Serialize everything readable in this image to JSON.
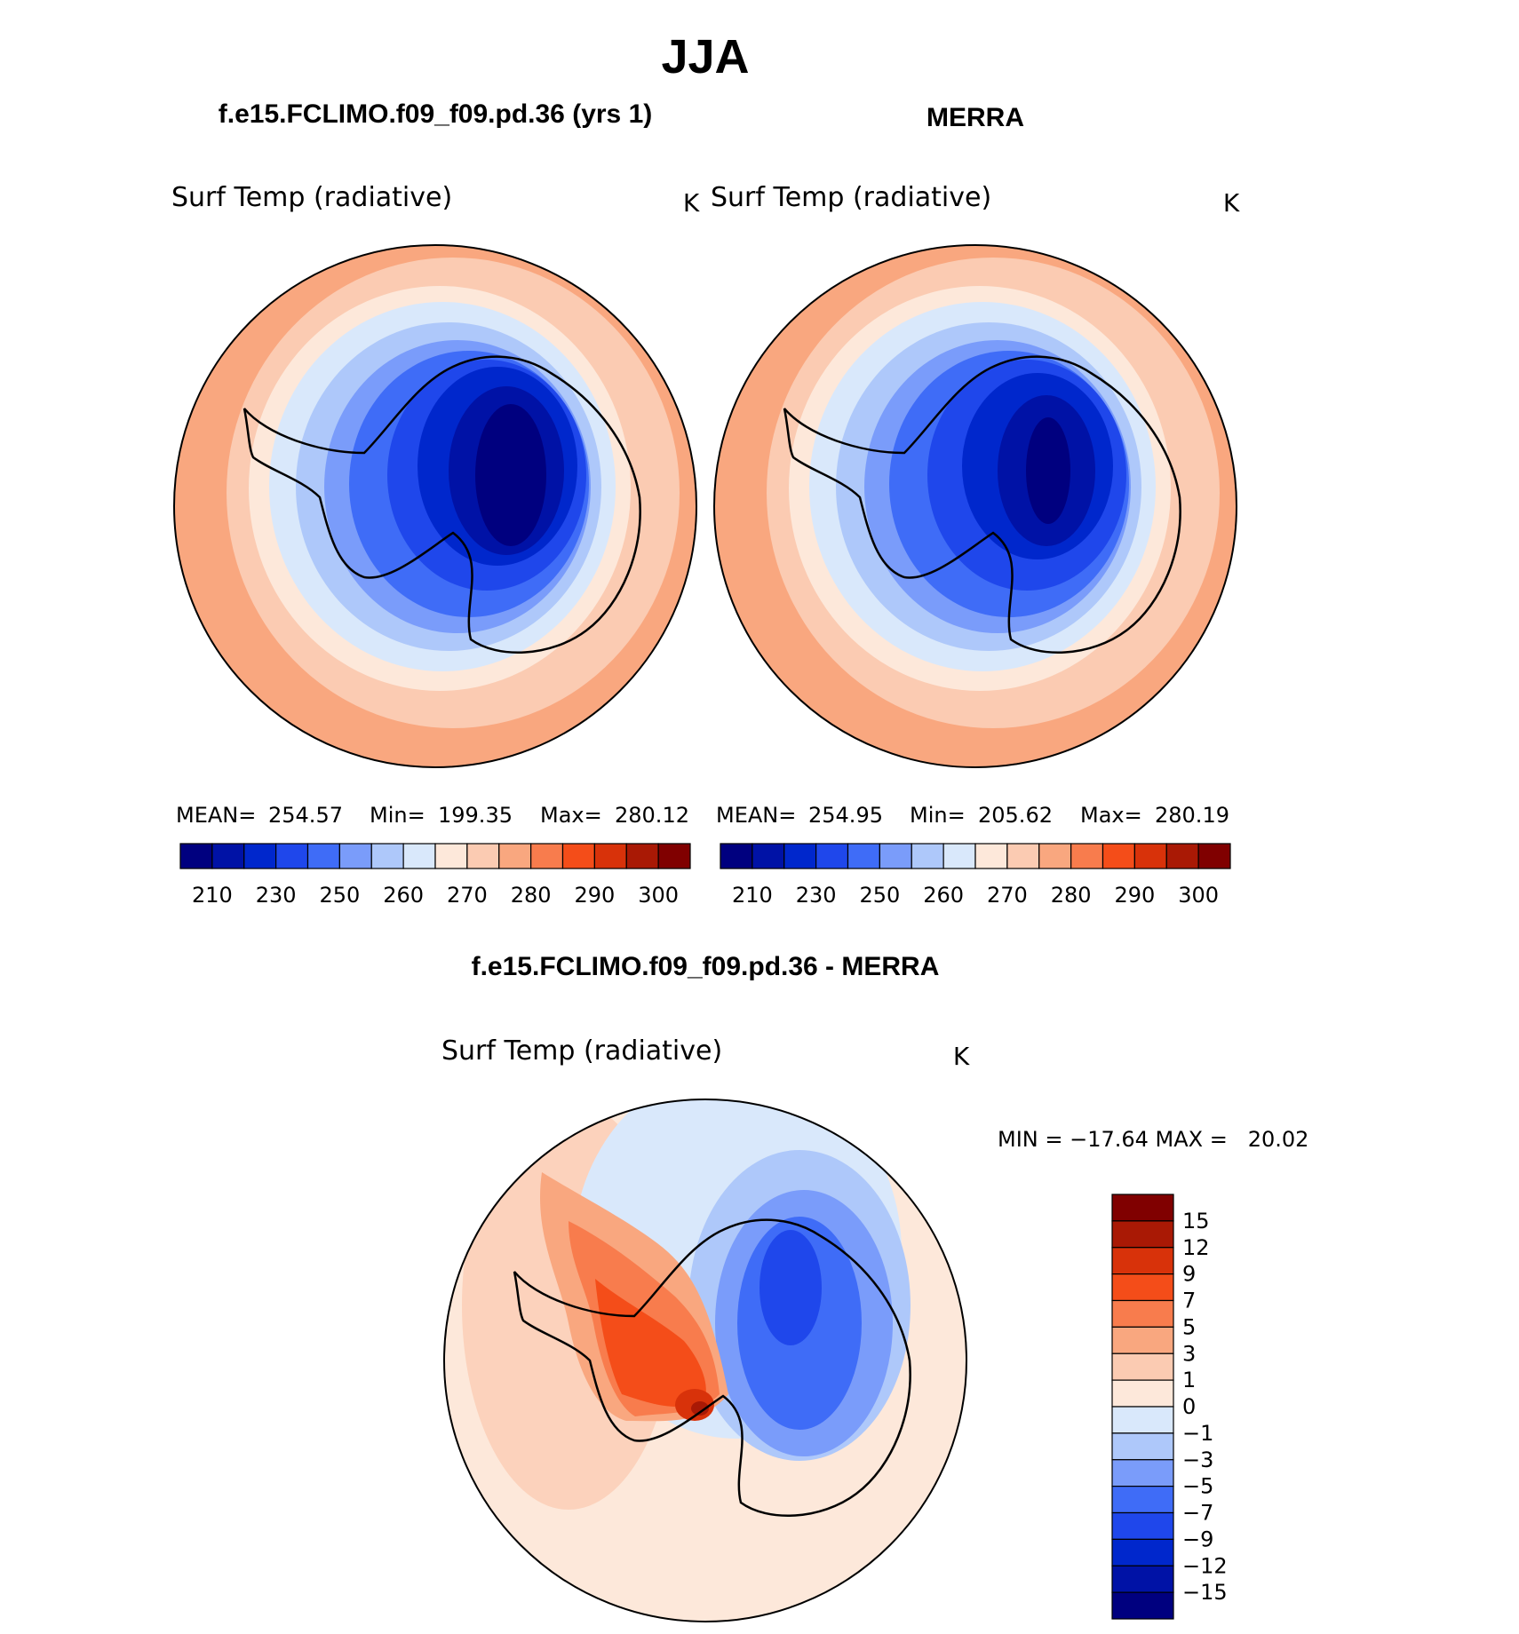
{
  "figure": {
    "title": "JJA",
    "colors": {
      "seq": [
        "#00007f",
        "#0012a6",
        "#0027cc",
        "#1f47eb",
        "#3f6cf7",
        "#7a9cfa",
        "#aec8fa",
        "#d9e8fb",
        "#fde8da",
        "#fbcbb2",
        "#f9a77f",
        "#f87c4d",
        "#f44d19",
        "#d8320a",
        "#a91905",
        "#800000"
      ],
      "diff": [
        "#800000",
        "#a91905",
        "#d8320a",
        "#f44d19",
        "#f87c4d",
        "#f9a77f",
        "#fbcbb2",
        "#fde8da",
        "#d9e8fb",
        "#aec8fa",
        "#7a9cfa",
        "#3f6cf7",
        "#1f47eb",
        "#0027cc",
        "#0012a6",
        "#00007f"
      ]
    },
    "panels": [
      {
        "header": "f.e15.FCLIMO.f09_f09.pd.36 (yrs 1)",
        "variable": "Surf Temp (radiative)",
        "units": "K",
        "stats": {
          "mean_label": "MEAN=",
          "mean": "254.57",
          "min_label": "Min=",
          "min": "199.35",
          "max_label": "Max=",
          "max": "280.12"
        },
        "colorbar_ticks": [
          "210",
          "230",
          "250",
          "260",
          "270",
          "280",
          "290",
          "300"
        ]
      },
      {
        "header": "MERRA",
        "variable": "Surf Temp (radiative)",
        "units": "K",
        "stats": {
          "mean_label": "MEAN=",
          "mean": "254.95",
          "min_label": "Min=",
          "min": "205.62",
          "max_label": "Max=",
          "max": "280.19"
        },
        "colorbar_ticks": [
          "210",
          "230",
          "250",
          "260",
          "270",
          "280",
          "290",
          "300"
        ]
      }
    ],
    "difference": {
      "header": "f.e15.FCLIMO.f09_f09.pd.36 - MERRA",
      "variable": "Surf Temp (radiative)",
      "units": "K",
      "minmax": "MIN = −17.64 MAX =   20.02",
      "colorbar_ticks": [
        "15",
        "12",
        "9",
        "7",
        "5",
        "3",
        "1",
        "0",
        "−1",
        "−3",
        "−5",
        "−7",
        "−9",
        "−12",
        "−15"
      ]
    }
  }
}
